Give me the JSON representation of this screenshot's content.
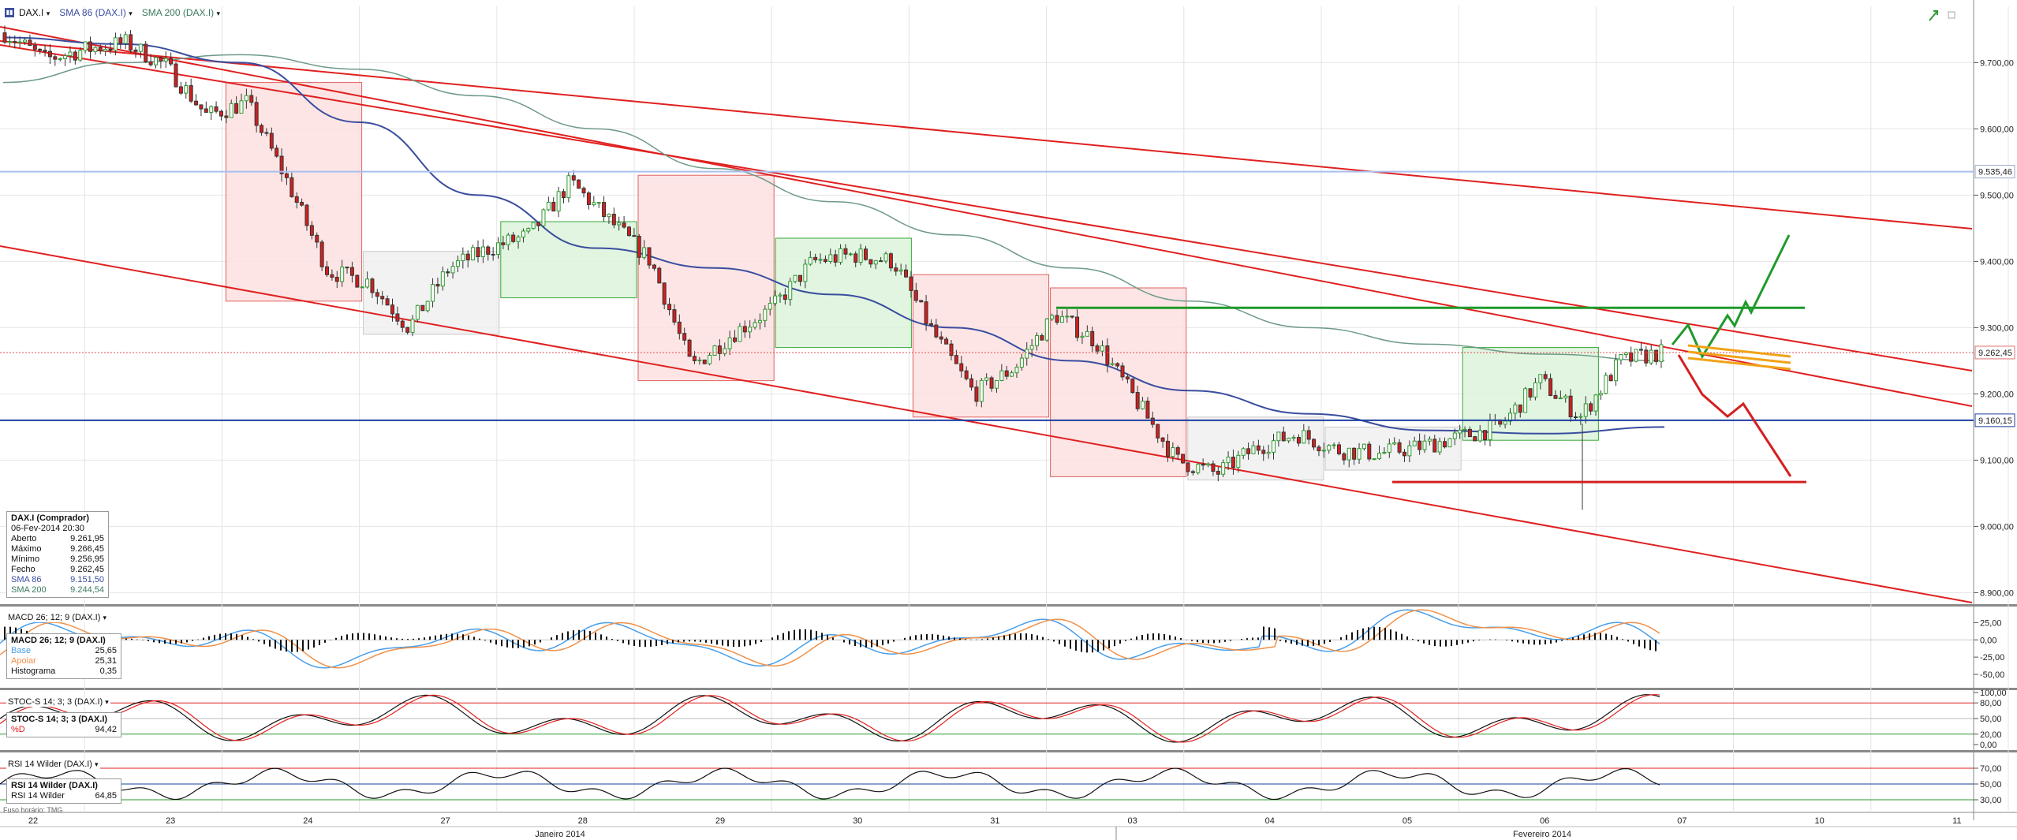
{
  "toolbar": {
    "symbol_label": "DAX.I",
    "sma86_label": "SMA 86 (DAX.I)",
    "sma200_label": "SMA 200 (DAX.I)"
  },
  "colors": {
    "bull": "#2e9a2e",
    "bear": "#d11f1f",
    "channel": "#e02020",
    "sma86": "#3a4d9e",
    "sma200": "#6e9a86",
    "support": "#1d3fa0",
    "resistance": "#a9bff0",
    "green_level": "#1f9a2a",
    "red_level": "#d42020",
    "projection_fan": "#f0a318",
    "macd_base": "#4a9ee8",
    "macd_signal": "#f0914a",
    "stoch_k": "#111111",
    "stoch_d": "#e02020"
  },
  "info_box": {
    "title": "DAX.I (Comprador)",
    "date": "06-Fev-2014 20:30",
    "rows": [
      {
        "label": "Aberto",
        "value": "9.261,95"
      },
      {
        "label": "Máximo",
        "value": "9.266,45"
      },
      {
        "label": "Mínimo",
        "value": "9.256,95"
      },
      {
        "label": "Fecho",
        "value": "9.262,45"
      },
      {
        "label": "SMA 86",
        "value": "9.151,50"
      },
      {
        "label": "SMA 200",
        "value": "9.244,54"
      }
    ]
  },
  "macd": {
    "title": "MACD 26; 12; 9 (DAX.I)",
    "box_title": "MACD 26; 12; 9 (DAX.I)",
    "rows": [
      {
        "label": "Base",
        "value": "25,65"
      },
      {
        "label": "Apoiar",
        "value": "25,31"
      },
      {
        "label": "Histograma",
        "value": "0,35"
      }
    ],
    "ticks": [
      "25,00",
      "0,00",
      "-25,00",
      "-50,00"
    ]
  },
  "stoch": {
    "title": "STOC-S 14; 3; 3 (DAX.I)",
    "box_title": "STOC-S 14; 3; 3 (DAX.I)",
    "rows": [
      {
        "label": "%D",
        "value": "94,42"
      }
    ],
    "ticks": [
      "100,00",
      "80,00",
      "50,00",
      "20,00",
      "0,00"
    ]
  },
  "rsi": {
    "title": "RSI 14 Wilder (DAX.I)",
    "box_title": "RSI 14 Wilder (DAX.I)",
    "rows": [
      {
        "label": "RSI 14 Wilder",
        "value": "64,85"
      }
    ],
    "ticks": [
      "70,00",
      "50,00",
      "30,00"
    ]
  },
  "timezone_label": "Fuso horário: TMG",
  "chart_data": {
    "type": "candlestick",
    "symbol": "DAX.I",
    "price_ticks": [
      "9.700,00",
      "9.600,00",
      "9.500,00",
      "9.400,00",
      "9.300,00",
      "9.200,00",
      "9.100,00",
      "9.000,00",
      "8.900,00"
    ],
    "ylim": [
      8885,
      9785
    ],
    "highlighted_prices": [
      "9.535,46",
      "9.262,45",
      "9.160,15"
    ],
    "x_day_labels": [
      "22",
      "23",
      "24",
      "27",
      "28",
      "29",
      "30",
      "31",
      "03",
      "04",
      "05",
      "06",
      "07",
      "10",
      "11"
    ],
    "x_month_labels": [
      "Janeiro 2014",
      "Fevereiro 2014"
    ],
    "levels": {
      "resistance": 9535.46,
      "support": 9160.15,
      "last_close": 9262.45,
      "green_line": 9330,
      "red_line": 9067
    },
    "day_zones": [
      {
        "day": "24",
        "color": "red",
        "high": 9670,
        "low": 9340
      },
      {
        "day": "27",
        "color": "grey",
        "high": 9415,
        "low": 9290
      },
      {
        "day": "28",
        "color": "green",
        "high": 9460,
        "low": 9345
      },
      {
        "day": "29",
        "color": "red",
        "high": 9530,
        "low": 9220
      },
      {
        "day": "30",
        "color": "green",
        "high": 9435,
        "low": 9270
      },
      {
        "day": "31",
        "color": "red",
        "high": 9380,
        "low": 9165
      },
      {
        "day": "03",
        "color": "red",
        "high": 9360,
        "low": 9075
      },
      {
        "day": "04",
        "color": "grey",
        "high": 9165,
        "low": 9070
      },
      {
        "day": "05",
        "color": "grey",
        "high": 9150,
        "low": 9085
      },
      {
        "day": "06",
        "color": "green",
        "high": 9270,
        "low": 9130
      }
    ],
    "series": [
      {
        "name": "SMA 86",
        "anchor_values": [
          9738,
          9728,
          9700,
          9610,
          9500,
          9420,
          9390,
          9350,
          9300,
          9250,
          9205,
          9170,
          9145,
          9140,
          9150
        ]
      },
      {
        "name": "SMA 200",
        "anchor_values": [
          9670,
          9700,
          9712,
          9690,
          9650,
          9600,
          9540,
          9490,
          9440,
          9390,
          9340,
          9300,
          9275,
          9260,
          9250
        ]
      },
      {
        "name": "DAX.I",
        "close_path": [
          9745,
          9705,
          9720,
          9730,
          9695,
          9620,
          9640,
          9520,
          9385,
          9370,
          9300,
          9390,
          9420,
          9440,
          9520,
          9460,
          9400,
          9240,
          9290,
          9330,
          9400,
          9410,
          9400,
          9290,
          9200,
          9240,
          9320,
          9280,
          9190,
          9100,
          9080,
          9120,
          9140,
          9115,
          9110,
          9120,
          9135,
          9150,
          9220,
          9165,
          9250,
          9262
        ]
      }
    ]
  }
}
